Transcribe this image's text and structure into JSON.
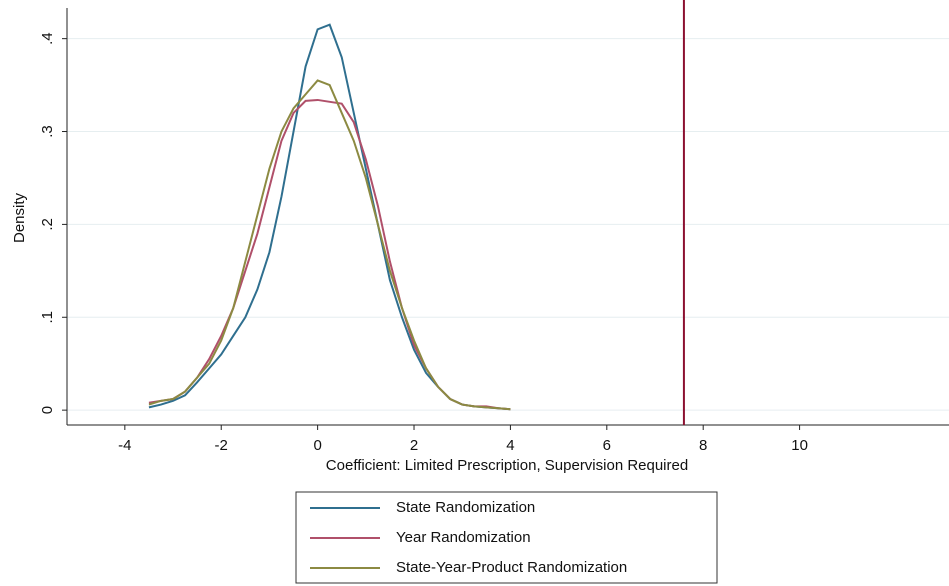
{
  "chart_data": {
    "type": "line",
    "xlabel": "Coefficient: Limited Prescription, Supervision Required",
    "ylabel": "Density",
    "x": [
      -3.5,
      -3.25,
      -3,
      -2.75,
      -2.5,
      -2.25,
      -2,
      -1.75,
      -1.5,
      -1.25,
      -1,
      -0.75,
      -0.5,
      -0.25,
      0,
      0.25,
      0.5,
      0.75,
      1,
      1.25,
      1.5,
      1.75,
      2,
      2.25,
      2.5,
      2.75,
      3,
      3.25,
      3.5,
      3.75,
      4
    ],
    "series": [
      {
        "name": "State Randomization",
        "color": "#2f6f8f",
        "values": [
          0.003,
          0.006,
          0.01,
          0.016,
          0.03,
          0.045,
          0.06,
          0.08,
          0.1,
          0.13,
          0.17,
          0.23,
          0.3,
          0.37,
          0.41,
          0.415,
          0.38,
          0.32,
          0.26,
          0.2,
          0.14,
          0.1,
          0.065,
          0.04,
          0.025,
          0.012,
          0.006,
          0.004,
          0.003,
          0.002,
          0.001
        ]
      },
      {
        "name": "Year Randomization",
        "color": "#b0506a",
        "values": [
          0.008,
          0.01,
          0.012,
          0.02,
          0.035,
          0.055,
          0.08,
          0.11,
          0.15,
          0.19,
          0.24,
          0.29,
          0.32,
          0.333,
          0.334,
          0.332,
          0.33,
          0.31,
          0.27,
          0.22,
          0.16,
          0.11,
          0.07,
          0.045,
          0.025,
          0.012,
          0.006,
          0.004,
          0.004,
          0.002,
          0.001
        ]
      },
      {
        "name": "State-Year-Product Randomization",
        "color": "#8c8a42",
        "values": [
          0.006,
          0.01,
          0.012,
          0.02,
          0.035,
          0.05,
          0.075,
          0.11,
          0.16,
          0.21,
          0.26,
          0.3,
          0.325,
          0.34,
          0.355,
          0.35,
          0.32,
          0.29,
          0.25,
          0.2,
          0.15,
          0.11,
          0.075,
          0.045,
          0.025,
          0.012,
          0.006,
          0.004,
          0.003,
          0.002,
          0.001
        ]
      }
    ],
    "vline": {
      "x": 7.6,
      "color": "#8b1030"
    },
    "xlim": [
      -5.2,
      13.1
    ],
    "ylim": [
      -0.016,
      0.433
    ],
    "xticks": [
      -4,
      -2,
      0,
      2,
      4,
      6,
      8,
      10
    ],
    "yticks": [
      0,
      {
        "value": 0.1,
        "label": ".1"
      },
      {
        "value": 0.2,
        "label": ".2"
      },
      {
        "value": 0.3,
        "label": ".3"
      },
      {
        "value": 0.4,
        "label": ".4"
      }
    ],
    "grid": true
  }
}
